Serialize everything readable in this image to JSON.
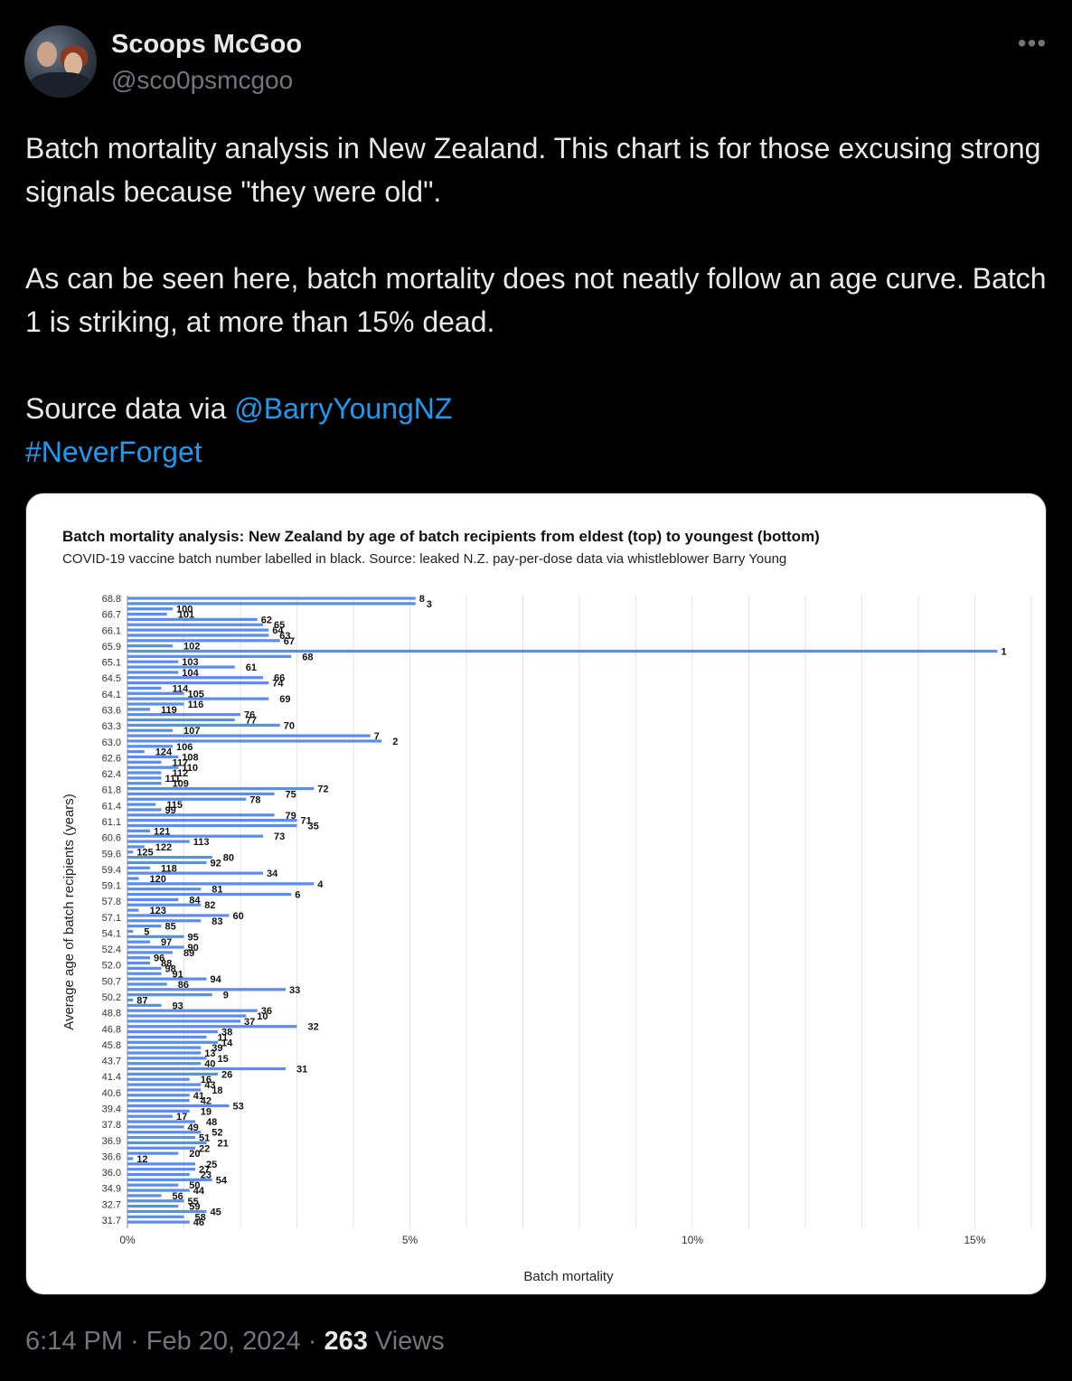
{
  "author": {
    "name": "Scoops McGoo",
    "handle": "@sco0psmcgoo"
  },
  "tweet": {
    "para1": "Batch mortality analysis in New Zealand. This chart is for those excusing strong signals because \"they were old\".",
    "para2": "As can be seen here, batch mortality does not neatly follow an age curve. Batch 1 is striking, at more than 15% dead.",
    "source_prefix": "Source data via ",
    "mention": "@BarryYoungNZ",
    "hashtag": "#NeverForget"
  },
  "more_icon": "more-horizontal-icon",
  "meta": {
    "time": "6:14 PM · Feb 20, 2024 · ",
    "views_count": "263",
    "views_label": " Views"
  },
  "colors": {
    "link": "#1d9bf0",
    "bar": "#5b8def"
  },
  "chart_data": {
    "type": "bar",
    "orientation": "horizontal",
    "title": "Batch mortality analysis: New Zealand by age of batch recipients from eldest (top) to youngest (bottom)",
    "subtitle": "COVID-19 vaccine batch number labelled in black. Source: leaked N.Z. pay-per-dose data via whistleblower Barry Young",
    "xlabel": "Batch mortality",
    "ylabel": "Average age of batch recipients (years)",
    "xlim": [
      0,
      16
    ],
    "xticks": [
      0,
      5,
      10,
      15
    ],
    "xtick_labels": [
      "0%",
      "5%",
      "10%",
      "15%"
    ],
    "grid": "vertical",
    "ytick_labels": [
      "68.8",
      "66.7",
      "66.1",
      "65.9",
      "65.1",
      "64.5",
      "64.1",
      "63.6",
      "63.3",
      "63.0",
      "62.6",
      "62.4",
      "61.8",
      "61.4",
      "61.1",
      "60.6",
      "59.6",
      "59.4",
      "59.1",
      "57.8",
      "57.1",
      "54.1",
      "52.4",
      "52.0",
      "50.7",
      "50.2",
      "48.8",
      "46.8",
      "45.8",
      "43.7",
      "41.4",
      "40.6",
      "39.4",
      "37.8",
      "36.9",
      "36.6",
      "36.0",
      "34.9",
      "32.7",
      "31.7"
    ],
    "bars": [
      {
        "batch": "8",
        "value": 5.1
      },
      {
        "batch": "3",
        "value": 5.1
      },
      {
        "batch": "100",
        "value": 0.8
      },
      {
        "batch": "101",
        "value": 0.7
      },
      {
        "batch": "62",
        "value": 2.3
      },
      {
        "batch": "65",
        "value": 2.4
      },
      {
        "batch": "64",
        "value": 2.5
      },
      {
        "batch": "63",
        "value": 2.5
      },
      {
        "batch": "67",
        "value": 2.7
      },
      {
        "batch": "102",
        "value": 0.8
      },
      {
        "batch": "1",
        "value": 15.4
      },
      {
        "batch": "68",
        "value": 2.9
      },
      {
        "batch": "103",
        "value": 0.9
      },
      {
        "batch": "61",
        "value": 1.9
      },
      {
        "batch": "104",
        "value": 0.9
      },
      {
        "batch": "66",
        "value": 2.4
      },
      {
        "batch": "74",
        "value": 2.5
      },
      {
        "batch": "114",
        "value": 0.6
      },
      {
        "batch": "105",
        "value": 1.0
      },
      {
        "batch": "69",
        "value": 2.5
      },
      {
        "batch": "116",
        "value": 1.0
      },
      {
        "batch": "119",
        "value": 0.4
      },
      {
        "batch": "76",
        "value": 2.0
      },
      {
        "batch": "77",
        "value": 1.9
      },
      {
        "batch": "70",
        "value": 2.7
      },
      {
        "batch": "107",
        "value": 0.8
      },
      {
        "batch": "7",
        "value": 4.3
      },
      {
        "batch": "2",
        "value": 4.5
      },
      {
        "batch": "106",
        "value": 0.8
      },
      {
        "batch": "124",
        "value": 0.3
      },
      {
        "batch": "108",
        "value": 0.9
      },
      {
        "batch": "117",
        "value": 0.6
      },
      {
        "batch": "110",
        "value": 0.9
      },
      {
        "batch": "112",
        "value": 0.6
      },
      {
        "batch": "111",
        "value": 0.6
      },
      {
        "batch": "109",
        "value": 0.6
      },
      {
        "batch": "72",
        "value": 3.3
      },
      {
        "batch": "75",
        "value": 2.6
      },
      {
        "batch": "78",
        "value": 2.1
      },
      {
        "batch": "115",
        "value": 0.5
      },
      {
        "batch": "99",
        "value": 0.6
      },
      {
        "batch": "79",
        "value": 2.6
      },
      {
        "batch": "71",
        "value": 3.0
      },
      {
        "batch": "35",
        "value": 3.0
      },
      {
        "batch": "121",
        "value": 0.4
      },
      {
        "batch": "73",
        "value": 2.4
      },
      {
        "batch": "113",
        "value": 1.1
      },
      {
        "batch": "122",
        "value": 0.3
      },
      {
        "batch": "125",
        "value": 0.1
      },
      {
        "batch": "80",
        "value": 1.5
      },
      {
        "batch": "92",
        "value": 1.4
      },
      {
        "batch": "118",
        "value": 0.4
      },
      {
        "batch": "34",
        "value": 2.4
      },
      {
        "batch": "120",
        "value": 0.2
      },
      {
        "batch": "4",
        "value": 3.3
      },
      {
        "batch": "81",
        "value": 1.3
      },
      {
        "batch": "6",
        "value": 2.9
      },
      {
        "batch": "84",
        "value": 0.9
      },
      {
        "batch": "82",
        "value": 1.3
      },
      {
        "batch": "123",
        "value": 0.2
      },
      {
        "batch": "60",
        "value": 1.8
      },
      {
        "batch": "83",
        "value": 1.3
      },
      {
        "batch": "85",
        "value": 0.6
      },
      {
        "batch": "5",
        "value": 0.1
      },
      {
        "batch": "95",
        "value": 1.0
      },
      {
        "batch": "97",
        "value": 0.4
      },
      {
        "batch": "90",
        "value": 1.0
      },
      {
        "batch": "89",
        "value": 0.8
      },
      {
        "batch": "96",
        "value": 0.4
      },
      {
        "batch": "88",
        "value": 0.4
      },
      {
        "batch": "98",
        "value": 0.6
      },
      {
        "batch": "91",
        "value": 0.6
      },
      {
        "batch": "94",
        "value": 1.4
      },
      {
        "batch": "86",
        "value": 0.7
      },
      {
        "batch": "33",
        "value": 2.8
      },
      {
        "batch": "9",
        "value": 1.5
      },
      {
        "batch": "87",
        "value": 0.1
      },
      {
        "batch": "93",
        "value": 0.6
      },
      {
        "batch": "36",
        "value": 2.3
      },
      {
        "batch": "10",
        "value": 2.1
      },
      {
        "batch": "37",
        "value": 2.0
      },
      {
        "batch": "32",
        "value": 3.0
      },
      {
        "batch": "38",
        "value": 1.6
      },
      {
        "batch": "11",
        "value": 1.4
      },
      {
        "batch": "14",
        "value": 1.6
      },
      {
        "batch": "39",
        "value": 1.3
      },
      {
        "batch": "13",
        "value": 1.3
      },
      {
        "batch": "15",
        "value": 1.4
      },
      {
        "batch": "40",
        "value": 1.3
      },
      {
        "batch": "31",
        "value": 2.8
      },
      {
        "batch": "26",
        "value": 1.6
      },
      {
        "batch": "16",
        "value": 1.1
      },
      {
        "batch": "43",
        "value": 1.3
      },
      {
        "batch": "18",
        "value": 1.3
      },
      {
        "batch": "41",
        "value": 1.1
      },
      {
        "batch": "42",
        "value": 1.1
      },
      {
        "batch": "53",
        "value": 1.8
      },
      {
        "batch": "19",
        "value": 1.1
      },
      {
        "batch": "17",
        "value": 0.8
      },
      {
        "batch": "48",
        "value": 1.2
      },
      {
        "batch": "49",
        "value": 1.0
      },
      {
        "batch": "52",
        "value": 1.3
      },
      {
        "batch": "51",
        "value": 1.2
      },
      {
        "batch": "21",
        "value": 1.4
      },
      {
        "batch": "22",
        "value": 1.2
      },
      {
        "batch": "20",
        "value": 0.9
      },
      {
        "batch": "12",
        "value": 0.1
      },
      {
        "batch": "25",
        "value": 1.2
      },
      {
        "batch": "27",
        "value": 1.2
      },
      {
        "batch": "23",
        "value": 1.1
      },
      {
        "batch": "54",
        "value": 1.5
      },
      {
        "batch": "50",
        "value": 0.9
      },
      {
        "batch": "44",
        "value": 1.1
      },
      {
        "batch": "56",
        "value": 0.6
      },
      {
        "batch": "55",
        "value": 1.0
      },
      {
        "batch": "59",
        "value": 0.9
      },
      {
        "batch": "45",
        "value": 1.4
      },
      {
        "batch": "58",
        "value": 1.0
      },
      {
        "batch": "46",
        "value": 1.1
      }
    ]
  }
}
